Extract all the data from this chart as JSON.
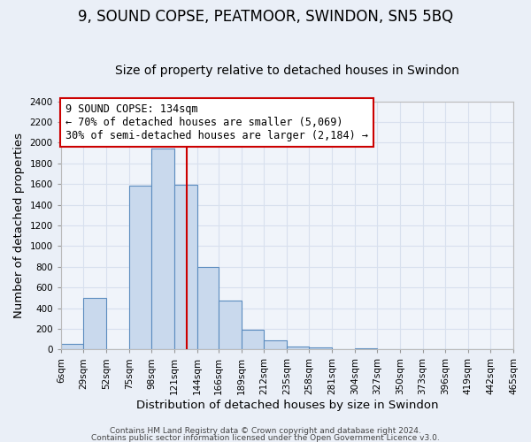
{
  "title": "9, SOUND COPSE, PEATMOOR, SWINDON, SN5 5BQ",
  "subtitle": "Size of property relative to detached houses in Swindon",
  "xlabel": "Distribution of detached houses by size in Swindon",
  "ylabel": "Number of detached properties",
  "bar_edges": [
    6,
    29,
    52,
    75,
    98,
    121,
    144,
    166,
    189,
    212,
    235,
    258,
    281,
    304,
    327,
    350,
    373,
    396,
    419,
    442,
    465
  ],
  "bar_heights": [
    55,
    500,
    0,
    1580,
    1940,
    1590,
    800,
    470,
    190,
    90,
    30,
    20,
    0,
    15,
    0,
    0,
    0,
    0,
    0,
    0
  ],
  "bar_color": "#c9d9ed",
  "bar_edge_color": "#5b8cbf",
  "vline_x": 134,
  "vline_color": "#cc0000",
  "annotation_line1": "9 SOUND COPSE: 134sqm",
  "annotation_line2": "← 70% of detached houses are smaller (5,069)",
  "annotation_line3": "30% of semi-detached houses are larger (2,184) →",
  "annotation_box_color": "#ffffff",
  "annotation_box_edge_color": "#cc0000",
  "ylim": [
    0,
    2400
  ],
  "yticks": [
    0,
    200,
    400,
    600,
    800,
    1000,
    1200,
    1400,
    1600,
    1800,
    2000,
    2200,
    2400
  ],
  "xtick_labels": [
    "6sqm",
    "29sqm",
    "52sqm",
    "75sqm",
    "98sqm",
    "121sqm",
    "144sqm",
    "166sqm",
    "189sqm",
    "212sqm",
    "235sqm",
    "258sqm",
    "281sqm",
    "304sqm",
    "327sqm",
    "350sqm",
    "373sqm",
    "396sqm",
    "419sqm",
    "442sqm",
    "465sqm"
  ],
  "footer1": "Contains HM Land Registry data © Crown copyright and database right 2024.",
  "footer2": "Contains public sector information licensed under the Open Government Licence v3.0.",
  "bg_color": "#eaeff7",
  "plot_bg_color": "#f0f4fa",
  "grid_color": "#d8e0ee",
  "title_fontsize": 12,
  "subtitle_fontsize": 10,
  "tick_fontsize": 7.5,
  "label_fontsize": 9.5,
  "annotation_fontsize": 8.5,
  "footer_fontsize": 6.5
}
